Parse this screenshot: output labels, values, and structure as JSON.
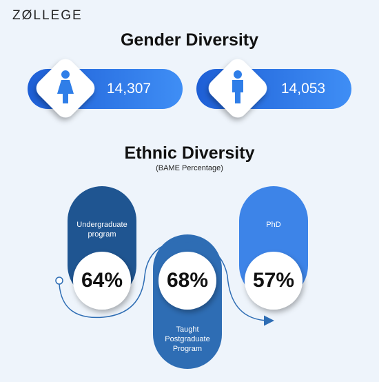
{
  "header": {
    "logo": "ZØLLEGE"
  },
  "gender": {
    "title": "Gender Diversity",
    "items": [
      {
        "count": "14,307"
      },
      {
        "count": "14,053"
      }
    ]
  },
  "ethnic": {
    "title": "Ethnic Diversity",
    "subtitle": "(BAME Percentage)",
    "items": [
      {
        "label": "Undergraduate program",
        "percent": "64%"
      },
      {
        "label": "Taught Postgraduate Program",
        "percent": "68%"
      },
      {
        "label": "PhD",
        "percent": "57%"
      }
    ]
  }
}
